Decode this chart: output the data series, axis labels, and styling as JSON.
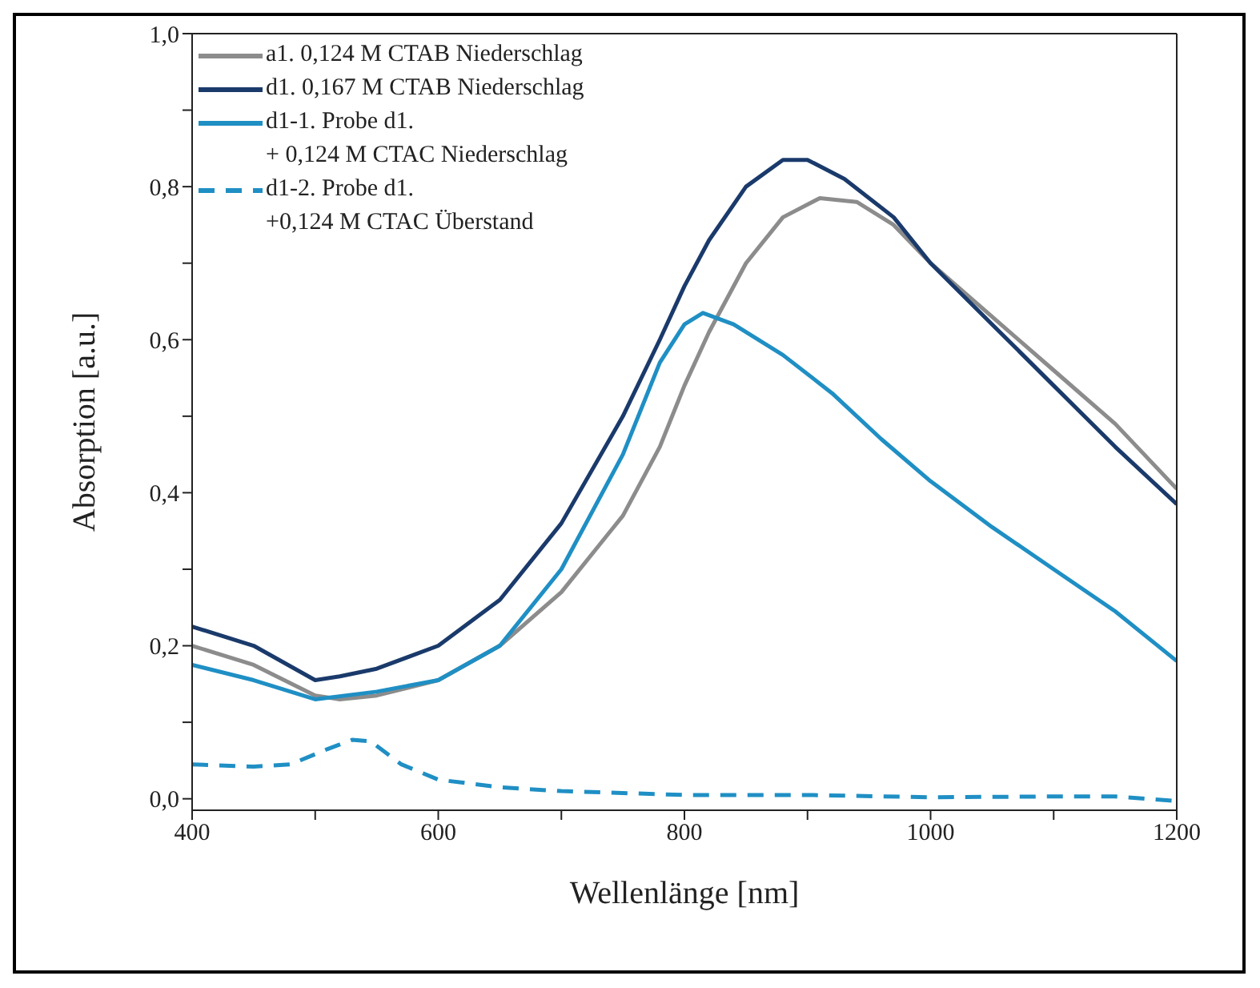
{
  "chart_data": {
    "type": "line",
    "xlabel": "Wellenlänge [nm]",
    "ylabel": "Absorption [a.u.]",
    "xlim": [
      400,
      1200
    ],
    "xticks": [
      400,
      {
        "value": 500,
        "label": null
      },
      600,
      {
        "value": 700,
        "label": null
      },
      800,
      {
        "value": 900,
        "label": null
      },
      1000,
      {
        "value": 1100,
        "label": null
      },
      1200
    ],
    "ylim": [
      -0.015,
      1.0
    ],
    "yticks": [
      {
        "value": 0,
        "label": "0,0"
      },
      {
        "value": 0.1,
        "label": null
      },
      {
        "value": 0.2,
        "label": "0,2"
      },
      {
        "value": 0.3,
        "label": null
      },
      {
        "value": 0.4,
        "label": "0,4"
      },
      {
        "value": 0.5,
        "label": null
      },
      {
        "value": 0.6,
        "label": "0,6"
      },
      {
        "value": 0.7,
        "label": null
      },
      {
        "value": 0.8,
        "label": "0,8"
      },
      {
        "value": 0.9,
        "label": null
      },
      {
        "value": 1.0,
        "label": "1,0"
      }
    ],
    "legend": "top left",
    "marker": "none",
    "series": [
      {
        "name": "a1. 0,124 M CTAB Niederschlag",
        "color": "#8c8c8c",
        "line_style": "solid",
        "x": [
          400,
          450,
          500,
          520,
          550,
          600,
          650,
          700,
          750,
          780,
          800,
          820,
          850,
          880,
          910,
          940,
          970,
          1000,
          1050,
          1100,
          1150,
          1200
        ],
        "values": [
          0.2,
          0.175,
          0.135,
          0.13,
          0.135,
          0.155,
          0.2,
          0.27,
          0.37,
          0.46,
          0.54,
          0.61,
          0.7,
          0.76,
          0.785,
          0.78,
          0.75,
          0.7,
          0.63,
          0.56,
          0.49,
          0.405
        ]
      },
      {
        "name": "d1. 0,167 M CTAB Niederschlag",
        "color": "#1a3a6b",
        "line_style": "solid",
        "x": [
          400,
          450,
          500,
          520,
          550,
          600,
          650,
          700,
          750,
          780,
          800,
          820,
          850,
          880,
          900,
          930,
          970,
          1000,
          1050,
          1100,
          1150,
          1200
        ],
        "values": [
          0.225,
          0.2,
          0.155,
          0.16,
          0.17,
          0.2,
          0.26,
          0.36,
          0.5,
          0.6,
          0.67,
          0.73,
          0.8,
          0.835,
          0.835,
          0.81,
          0.76,
          0.7,
          0.62,
          0.54,
          0.46,
          0.385
        ]
      },
      {
        "name": "d1-1. Probe d1.\n+ 0,124 M CTAC Niederschlag",
        "color": "#1f8fc4",
        "line_style": "solid",
        "x": [
          400,
          450,
          500,
          550,
          600,
          650,
          700,
          750,
          780,
          800,
          815,
          840,
          880,
          920,
          960,
          1000,
          1050,
          1100,
          1150,
          1200
        ],
        "values": [
          0.175,
          0.155,
          0.13,
          0.14,
          0.155,
          0.2,
          0.3,
          0.45,
          0.57,
          0.62,
          0.635,
          0.62,
          0.58,
          0.53,
          0.47,
          0.415,
          0.355,
          0.3,
          0.245,
          0.18
        ]
      },
      {
        "name": "d1-2. Probe d1.\n+0,124 M CTAC Überstand",
        "color": "#1f8fc4",
        "line_style": "dashed",
        "x": [
          400,
          450,
          480,
          510,
          530,
          545,
          570,
          600,
          650,
          700,
          800,
          900,
          1000,
          1100,
          1150,
          1200
        ],
        "values": [
          0.045,
          0.042,
          0.045,
          0.065,
          0.077,
          0.075,
          0.045,
          0.025,
          0.015,
          0.01,
          0.005,
          0.005,
          0.002,
          0.003,
          0.003,
          -0.003
        ]
      }
    ]
  }
}
